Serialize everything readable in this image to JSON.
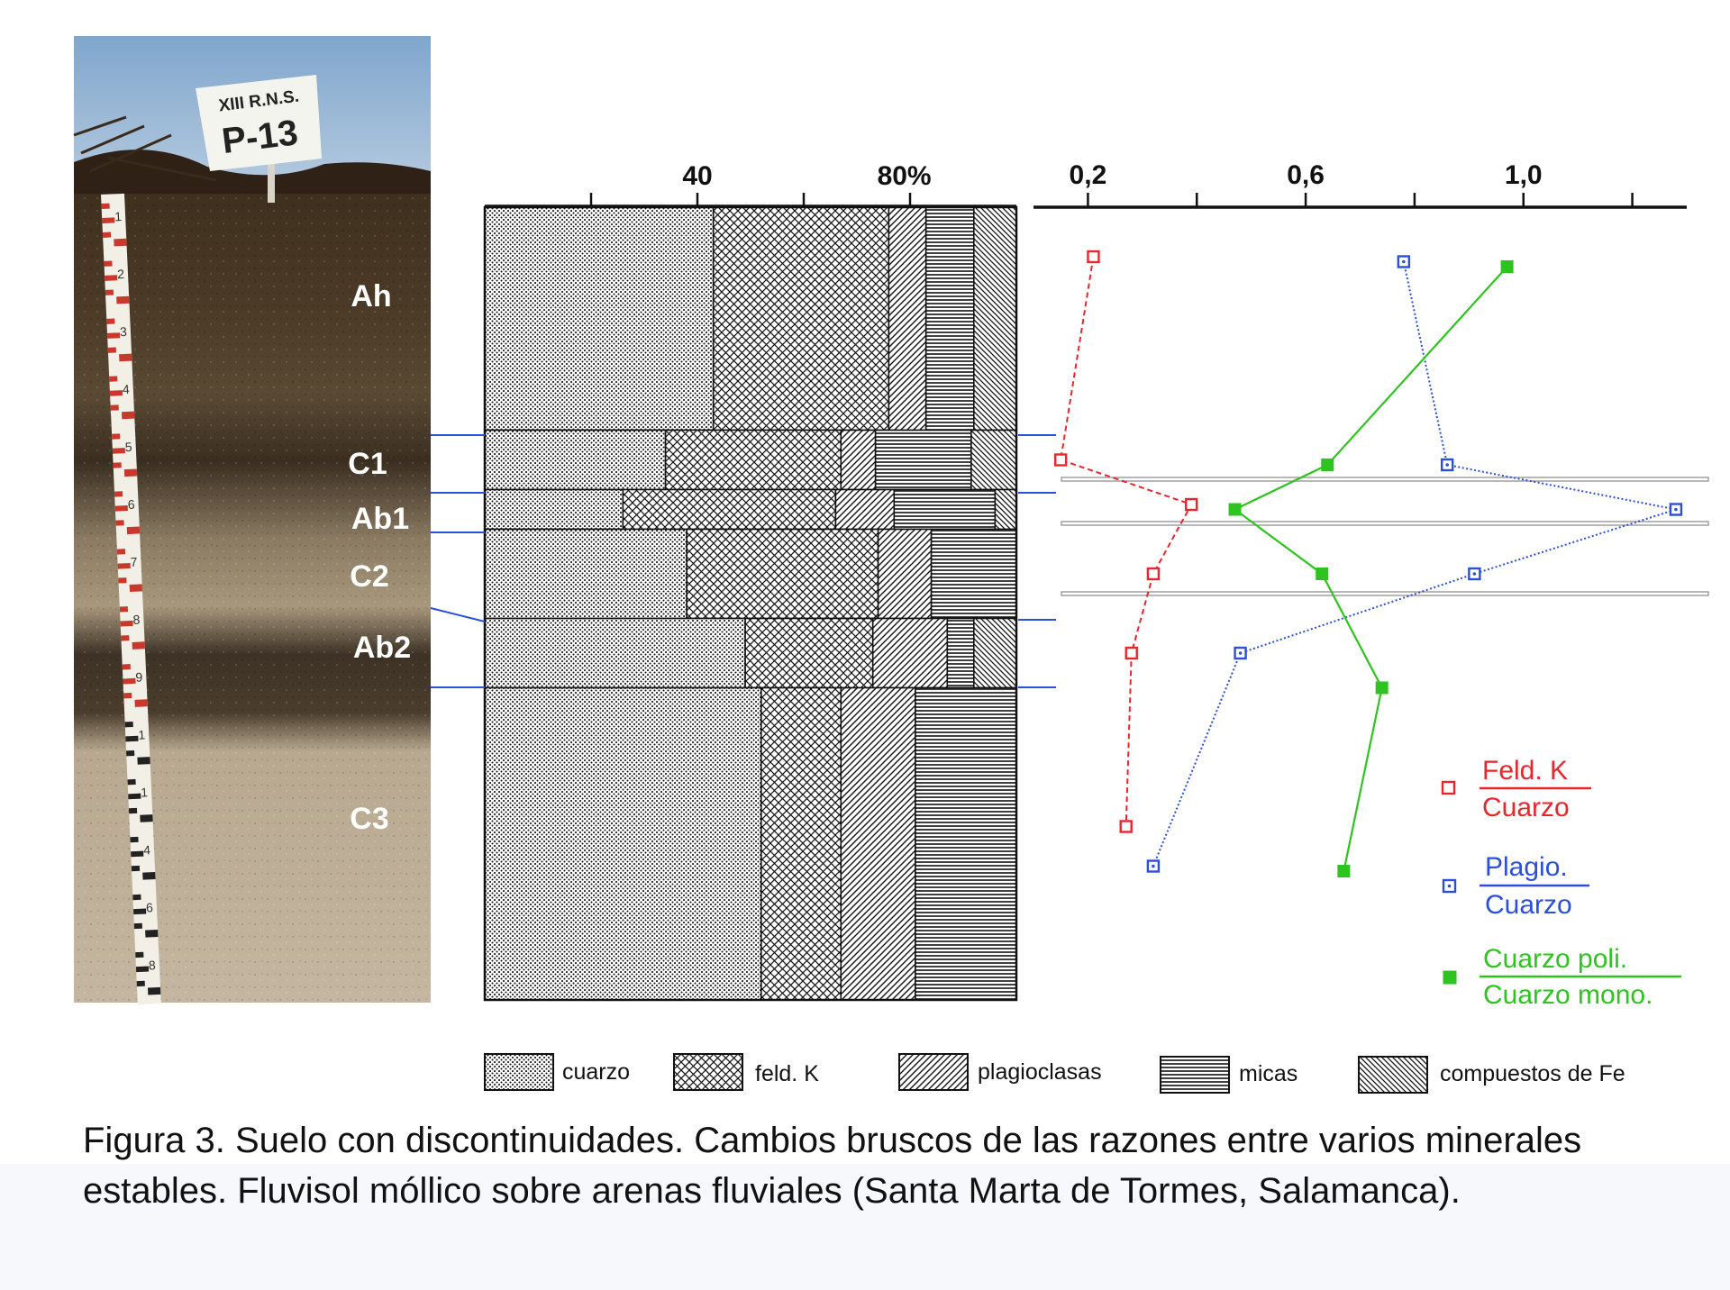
{
  "photo": {
    "sign_lines": [
      "XIII R.N.S.",
      "P-13"
    ],
    "horizon_labels": [
      "Ah",
      "C1",
      "Ab1",
      "C2",
      "Ab2",
      "C3"
    ],
    "ruler_numbers": [
      "1",
      "2",
      "3",
      "4",
      "5",
      "6",
      "7",
      "8",
      "9",
      "1",
      "1",
      "4",
      "6",
      "8"
    ]
  },
  "chart_data": [
    {
      "type": "bar",
      "orientation": "horizontal-stacked",
      "axis_ticks": [
        "40",
        "80%"
      ],
      "xlim": [
        0,
        100
      ],
      "categories": [
        "Ah",
        "C1",
        "Ab1",
        "C2",
        "Ab2",
        "C3"
      ],
      "layer_bounds": [
        0,
        45,
        57,
        65,
        83,
        97,
        160
      ],
      "series": [
        {
          "name": "cuarzo",
          "values": [
            43,
            34,
            26,
            38,
            49,
            52
          ]
        },
        {
          "name": "feld. K",
          "values": [
            33,
            33,
            40,
            36,
            24,
            15
          ]
        },
        {
          "name": "plagioclasas",
          "values": [
            7,
            6.5,
            11,
            10,
            14,
            14
          ]
        },
        {
          "name": "micas",
          "values": [
            9,
            18,
            19,
            16,
            5,
            19
          ]
        },
        {
          "name": "compuestos de Fe",
          "values": [
            8,
            8.5,
            4,
            0,
            8,
            0
          ]
        }
      ]
    },
    {
      "type": "line",
      "axis_ticks": [
        "0,2",
        "0,6",
        "1,0"
      ],
      "xlim": [
        0.1,
        1.3
      ],
      "series": [
        {
          "name": "Feld. K / Cuarzo",
          "color": "#e8262b",
          "marker": "open-square",
          "line": "dashed",
          "points": [
            [
              0.21,
              10
            ],
            [
              0.15,
              51
            ],
            [
              0.39,
              60
            ],
            [
              0.32,
              74
            ],
            [
              0.28,
              90
            ],
            [
              0.27,
              125
            ]
          ]
        },
        {
          "name": "Plagio. / Cuarzo",
          "color": "#2b4fd8",
          "marker": "dot-square",
          "line": "dotted",
          "points": [
            [
              0.78,
              11
            ],
            [
              0.86,
              52
            ],
            [
              1.28,
              61
            ],
            [
              0.91,
              74
            ],
            [
              0.48,
              90
            ],
            [
              0.32,
              133
            ]
          ]
        },
        {
          "name": "Cuarzo poli. / Cuarzo mono.",
          "color": "#2ec41f",
          "marker": "filled-square",
          "line": "solid",
          "points": [
            [
              0.97,
              12
            ],
            [
              0.64,
              52
            ],
            [
              0.47,
              61
            ],
            [
              0.63,
              74
            ],
            [
              0.74,
              97
            ],
            [
              0.67,
              134
            ]
          ]
        }
      ]
    }
  ],
  "legend": {
    "patterns": [
      "cuarzo",
      "feld. K",
      "plagioclasas",
      "micas",
      "compuestos de Fe"
    ],
    "ratios": [
      {
        "numerator": "Feld. K",
        "denominator": "Cuarzo",
        "color": "#e8262b"
      },
      {
        "numerator": "Plagio.",
        "denominator": "Cuarzo",
        "color": "#2b4fd8"
      },
      {
        "numerator": "Cuarzo poli.",
        "denominator": "Cuarzo mono.",
        "color": "#2ec41f"
      }
    ]
  },
  "caption": "Figura 3. Suelo con discontinuidades. Cambios bruscos de las razones entre varios minerales estables. Fluvisol móllico sobre arenas fluviales (Santa Marta de Tormes, Salamanca)."
}
